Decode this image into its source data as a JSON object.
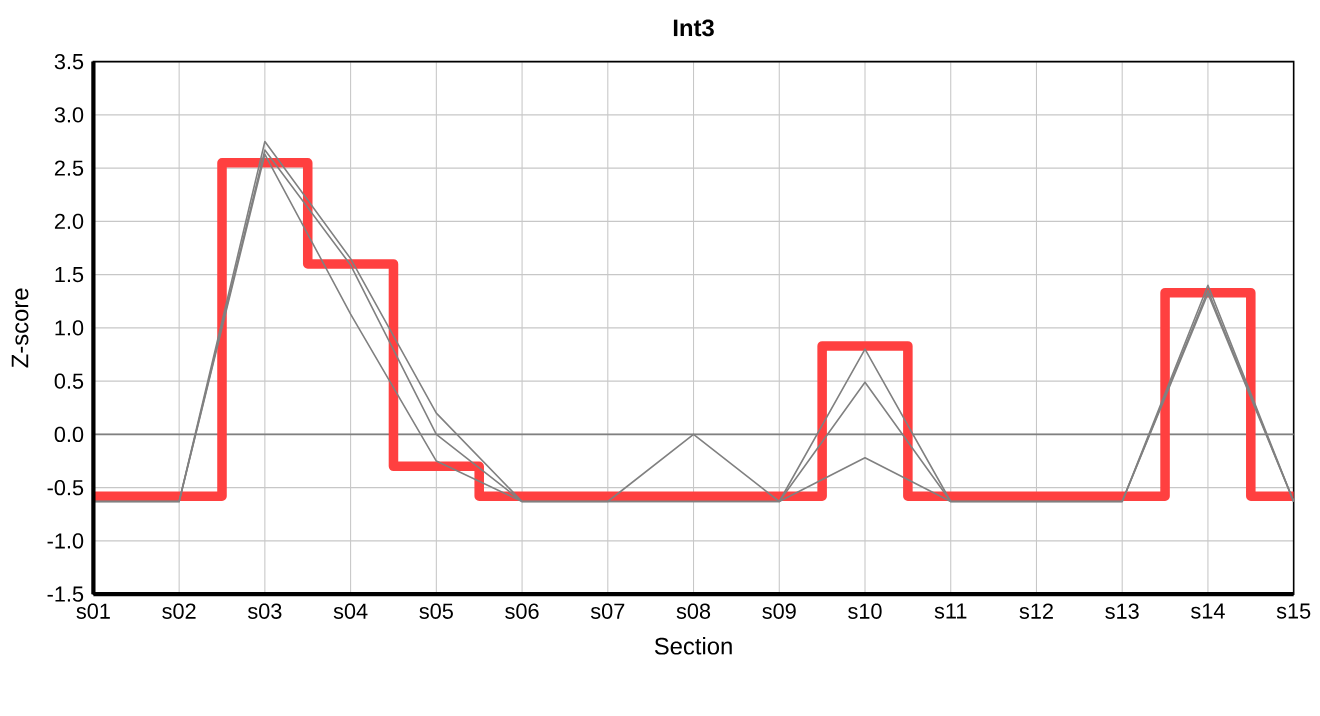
{
  "chart_data": {
    "type": "line",
    "title": "Int3",
    "xlabel": "Section",
    "ylabel": "Z-score",
    "categories": [
      "s01",
      "s02",
      "s03",
      "s04",
      "s05",
      "s06",
      "s07",
      "s08",
      "s09",
      "s10",
      "s11",
      "s12",
      "s13",
      "s14",
      "s15"
    ],
    "series": [
      {
        "type": "step",
        "color": "#ff4040",
        "values": [
          -0.58,
          -0.58,
          2.55,
          1.6,
          -0.3,
          -0.58,
          -0.58,
          -0.58,
          -0.58,
          0.83,
          -0.58,
          -0.58,
          -0.58,
          1.33,
          -0.58
        ]
      },
      {
        "color": "#808080",
        "values": [
          -0.63,
          -0.63,
          2.75,
          1.65,
          0.2,
          -0.63,
          -0.63,
          -0.63,
          -0.63,
          0.8,
          -0.63,
          -0.63,
          -0.63,
          1.4,
          -0.63
        ]
      },
      {
        "color": "#808080",
        "values": [
          -0.63,
          -0.63,
          2.67,
          1.59,
          0.0,
          -0.63,
          -0.63,
          0.0,
          -0.63,
          0.49,
          -0.63,
          -0.63,
          -0.63,
          1.35,
          -0.63
        ]
      },
      {
        "color": "#808080",
        "values": [
          -0.63,
          -0.63,
          2.63,
          1.13,
          -0.25,
          -0.63,
          -0.63,
          -0.63,
          -0.63,
          -0.22,
          -0.63,
          -0.63,
          -0.63,
          1.32,
          -0.63
        ]
      }
    ],
    "ylim": [
      -1.5,
      3.5
    ],
    "yticks": [
      {
        "value": -1.5,
        "label": "-1.5"
      },
      {
        "value": -1,
        "label": "-1.0"
      },
      {
        "value": -0.5,
        "label": "-0.5"
      },
      {
        "value": 0,
        "label": "0.0"
      },
      {
        "value": 0.5,
        "label": "0.5"
      },
      {
        "value": 1,
        "label": "1.0"
      },
      {
        "value": 1.5,
        "label": "1.5"
      },
      {
        "value": 2,
        "label": "2.0"
      },
      {
        "value": 2.5,
        "label": "2.5"
      },
      {
        "value": 3,
        "label": "3.0"
      },
      {
        "value": 3.5,
        "label": "3.5"
      }
    ],
    "ref_lines": [
      {
        "axis": "y",
        "value": 0,
        "color": "#808080"
      }
    ],
    "grid": true,
    "marker": "none",
    "line_style": "solid"
  }
}
